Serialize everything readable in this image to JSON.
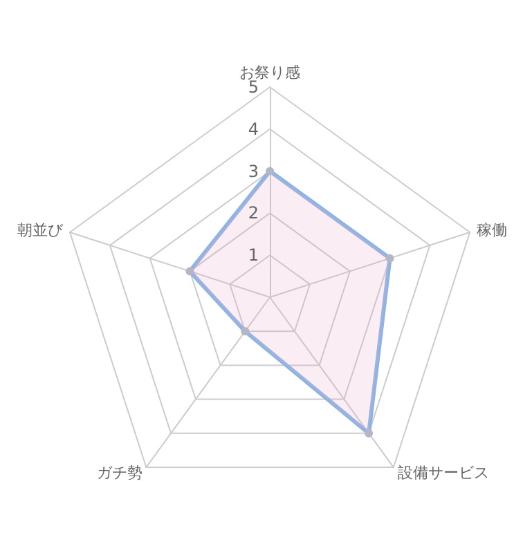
{
  "chart_data": {
    "type": "radar",
    "categories": [
      "お祭り感",
      "稼働",
      "設備サービス",
      "ガチ勢",
      "朝並び"
    ],
    "series": [
      {
        "color": "#8db4e2",
        "values": [
          3,
          3,
          4,
          1,
          2
        ]
      }
    ],
    "ylim": [
      0,
      5
    ],
    "yticks": [
      1,
      2,
      3,
      4,
      5
    ],
    "grid": true,
    "marker": "circle"
  }
}
